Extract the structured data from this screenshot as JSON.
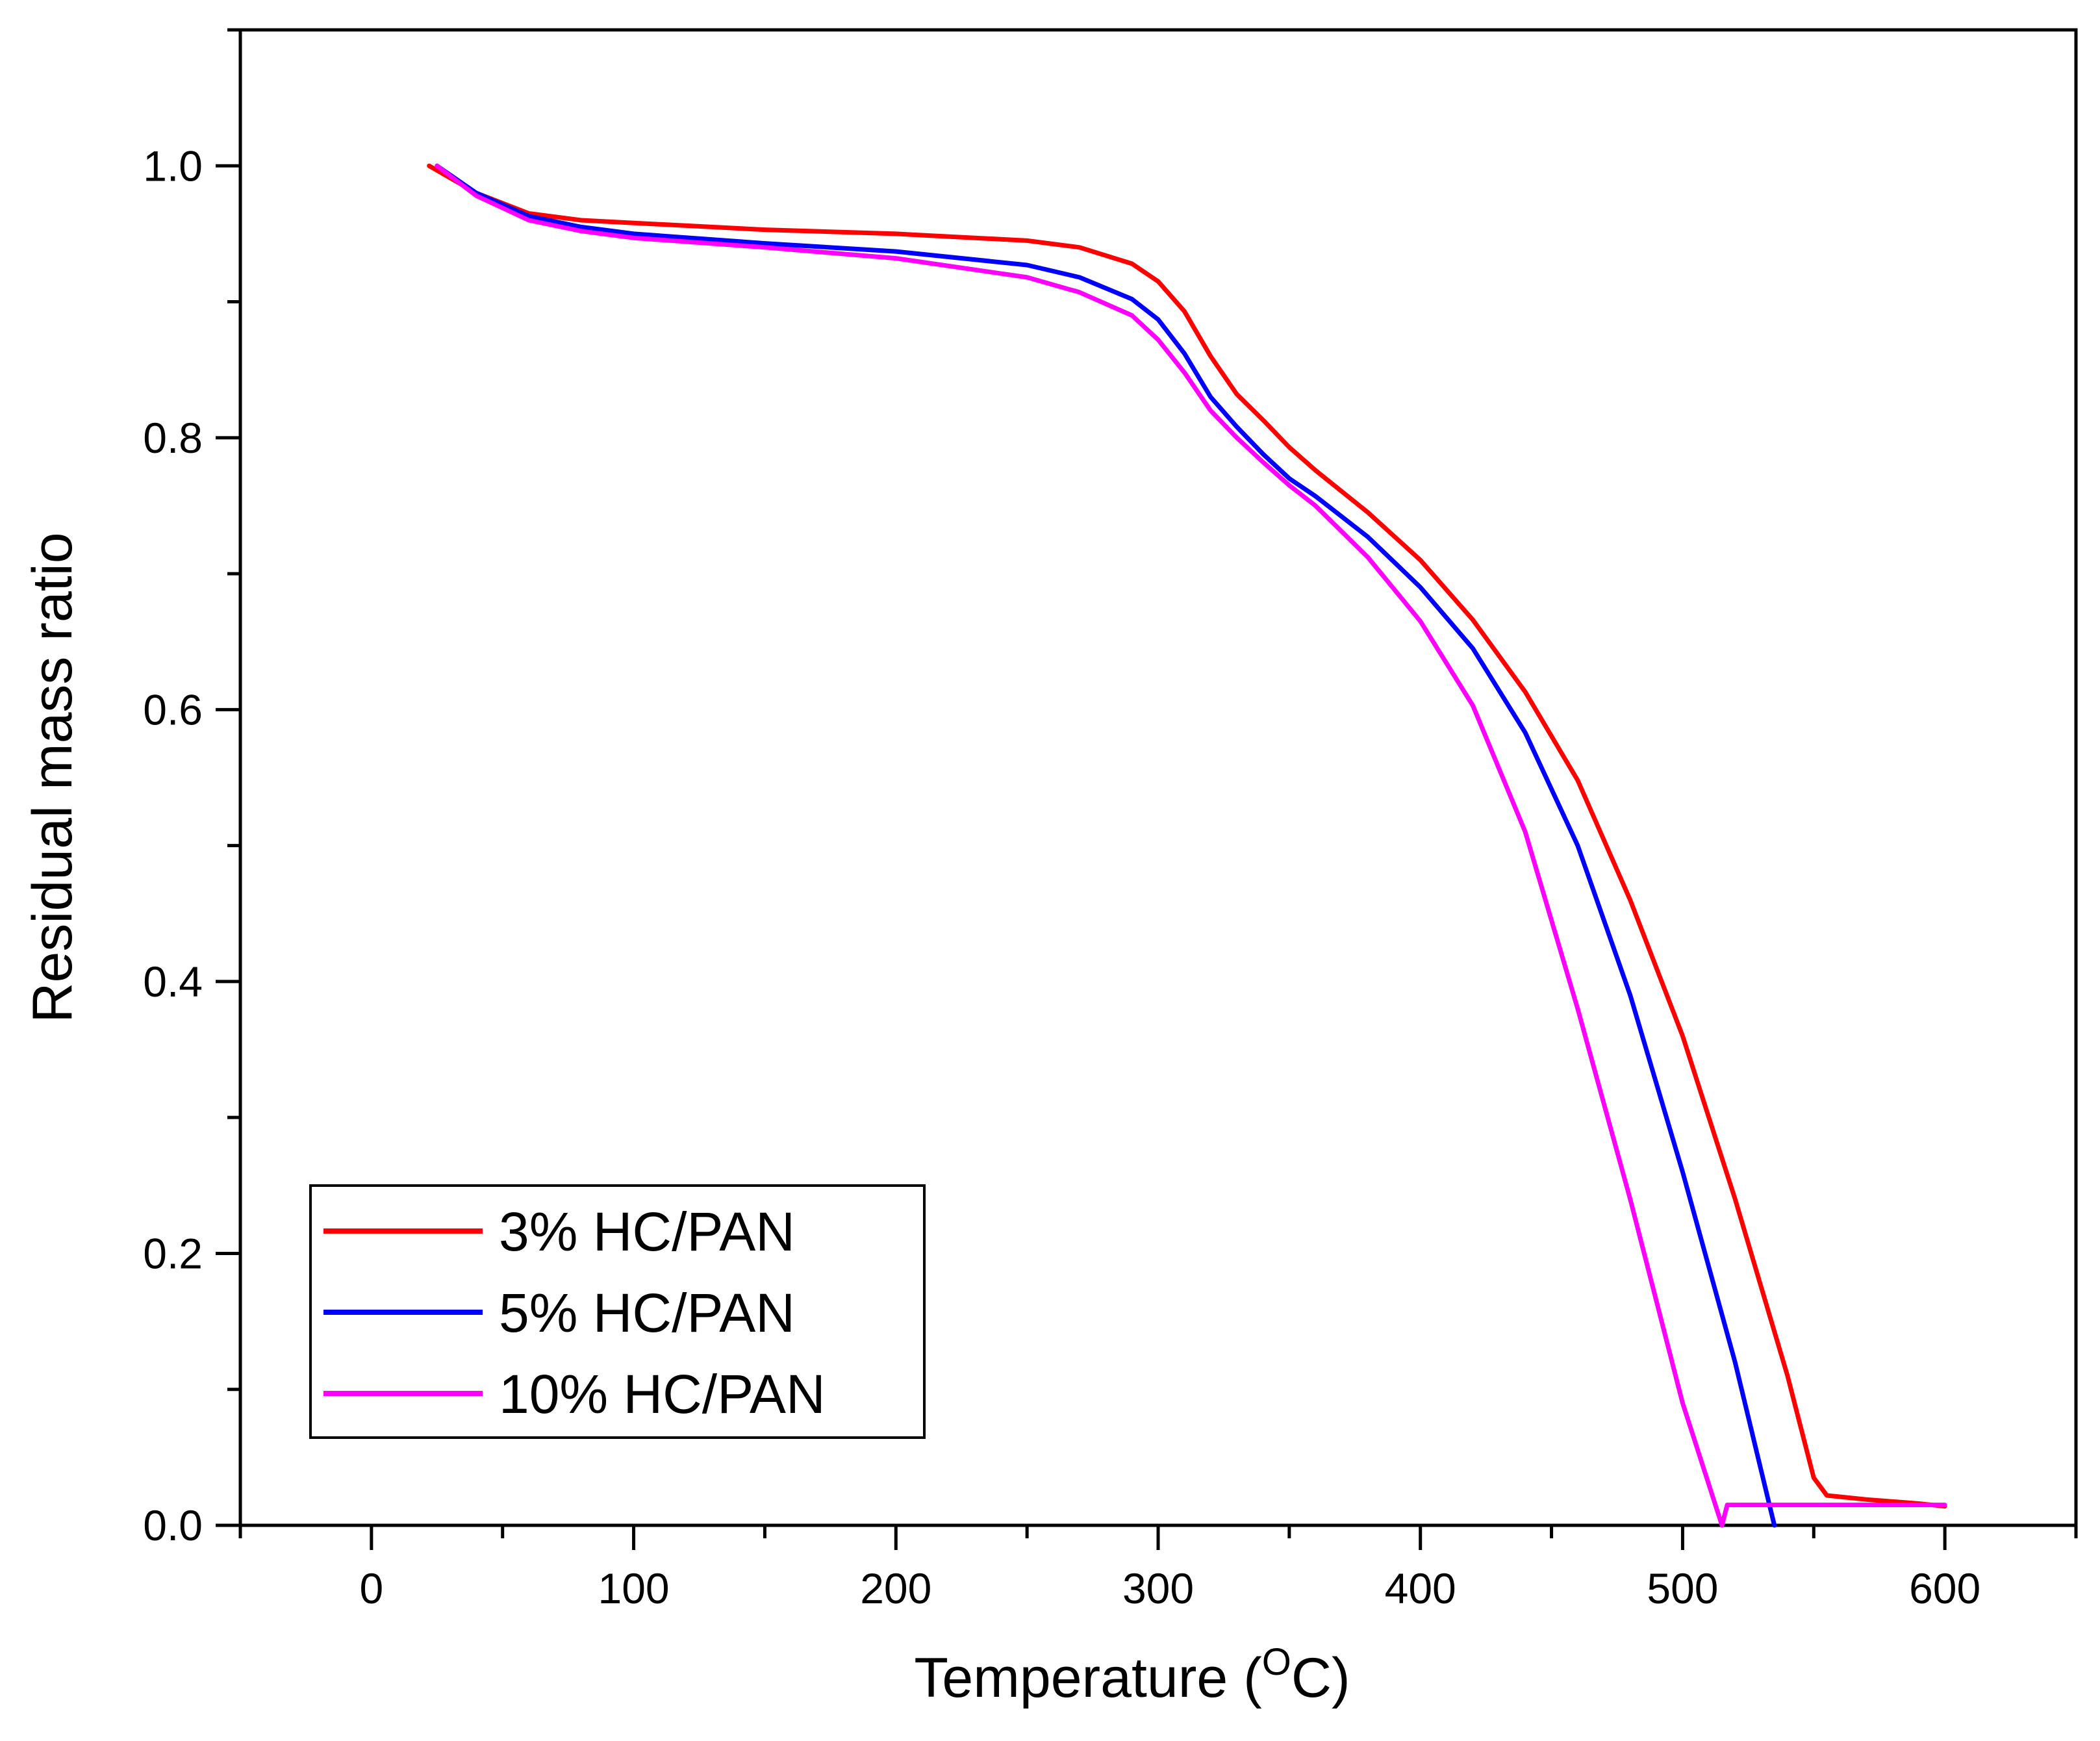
{
  "chart_data": {
    "type": "line",
    "title": "",
    "xlabel": "Temperature (",
    "xlabel_superscript": "O",
    "xlabel_suffix": "C)",
    "ylabel": "Residual mass ratio",
    "xlim": [
      -50,
      650
    ],
    "ylim": [
      0,
      1.1
    ],
    "xticks": [
      0,
      100,
      200,
      300,
      400,
      500,
      600
    ],
    "xtick_labels": [
      "0",
      "100",
      "200",
      "300",
      "400",
      "500",
      "600"
    ],
    "yticks": [
      0.0,
      0.2,
      0.4,
      0.6,
      0.8,
      1.0
    ],
    "ytick_labels": [
      "0.0",
      "0.2",
      "0.4",
      "0.6",
      "0.8",
      "1.0"
    ],
    "grid": false,
    "legend_position": "bottom-left",
    "series": [
      {
        "name": "3% HC/PAN",
        "color": "#ff0000",
        "points": [
          [
            22,
            1.0
          ],
          [
            40,
            0.98
          ],
          [
            60,
            0.965
          ],
          [
            80,
            0.96
          ],
          [
            100,
            0.958
          ],
          [
            150,
            0.953
          ],
          [
            200,
            0.95
          ],
          [
            250,
            0.945
          ],
          [
            270,
            0.94
          ],
          [
            290,
            0.928
          ],
          [
            300,
            0.915
          ],
          [
            310,
            0.893
          ],
          [
            320,
            0.86
          ],
          [
            330,
            0.832
          ],
          [
            340,
            0.813
          ],
          [
            350,
            0.793
          ],
          [
            360,
            0.776
          ],
          [
            380,
            0.745
          ],
          [
            400,
            0.71
          ],
          [
            420,
            0.666
          ],
          [
            440,
            0.613
          ],
          [
            460,
            0.548
          ],
          [
            480,
            0.46
          ],
          [
            500,
            0.36
          ],
          [
            520,
            0.24
          ],
          [
            540,
            0.11
          ],
          [
            550,
            0.035
          ],
          [
            555,
            0.022
          ],
          [
            570,
            0.019
          ],
          [
            590,
            0.016
          ],
          [
            600,
            0.014
          ]
        ]
      },
      {
        "name": "5% HC/PAN",
        "color": "#0000ff",
        "points": [
          [
            25,
            1.0
          ],
          [
            40,
            0.98
          ],
          [
            60,
            0.963
          ],
          [
            80,
            0.955
          ],
          [
            100,
            0.95
          ],
          [
            150,
            0.943
          ],
          [
            200,
            0.937
          ],
          [
            250,
            0.927
          ],
          [
            270,
            0.918
          ],
          [
            290,
            0.902
          ],
          [
            300,
            0.887
          ],
          [
            310,
            0.862
          ],
          [
            320,
            0.83
          ],
          [
            330,
            0.808
          ],
          [
            340,
            0.788
          ],
          [
            350,
            0.77
          ],
          [
            360,
            0.757
          ],
          [
            380,
            0.727
          ],
          [
            400,
            0.69
          ],
          [
            420,
            0.645
          ],
          [
            440,
            0.583
          ],
          [
            460,
            0.5
          ],
          [
            480,
            0.39
          ],
          [
            500,
            0.26
          ],
          [
            520,
            0.12
          ],
          [
            530,
            0.04
          ],
          [
            535,
            0.0
          ]
        ]
      },
      {
        "name": "10% HC/PAN",
        "color": "#ff00ff",
        "points": [
          [
            25,
            1.0
          ],
          [
            40,
            0.978
          ],
          [
            60,
            0.96
          ],
          [
            80,
            0.952
          ],
          [
            100,
            0.947
          ],
          [
            150,
            0.94
          ],
          [
            200,
            0.932
          ],
          [
            250,
            0.918
          ],
          [
            270,
            0.907
          ],
          [
            290,
            0.89
          ],
          [
            300,
            0.872
          ],
          [
            310,
            0.848
          ],
          [
            320,
            0.82
          ],
          [
            330,
            0.8
          ],
          [
            340,
            0.782
          ],
          [
            350,
            0.765
          ],
          [
            360,
            0.75
          ],
          [
            380,
            0.712
          ],
          [
            400,
            0.665
          ],
          [
            420,
            0.603
          ],
          [
            440,
            0.51
          ],
          [
            460,
            0.38
          ],
          [
            480,
            0.24
          ],
          [
            500,
            0.09
          ],
          [
            510,
            0.03
          ],
          [
            515,
            0.0
          ],
          [
            517,
            0.015
          ],
          [
            600,
            0.015
          ]
        ]
      }
    ]
  }
}
